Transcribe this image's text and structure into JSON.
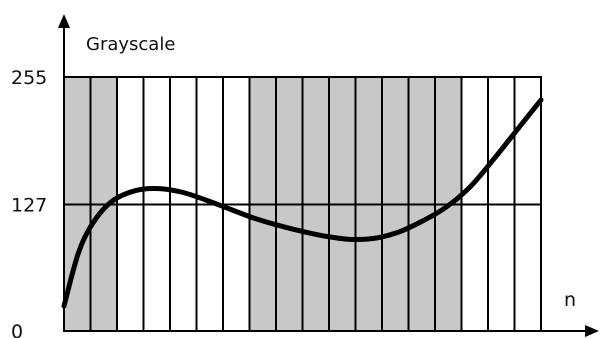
{
  "chart_data": {
    "type": "line",
    "title": "",
    "xlabel": "n",
    "ylabel": "Grayscale",
    "ylim": [
      0,
      255
    ],
    "yticks": [
      {
        "value": 0,
        "label": "0"
      },
      {
        "value": 127,
        "label": "127"
      },
      {
        "value": 255,
        "label": "255"
      }
    ],
    "grid": true,
    "stripes": [
      "gray",
      "gray",
      "white",
      "white",
      "white",
      "white",
      "white",
      "gray",
      "gray",
      "gray",
      "gray",
      "gray",
      "gray",
      "gray",
      "gray",
      "white",
      "white",
      "white"
    ],
    "colors": {
      "stripe_filled": "#c8c8c8",
      "stripe_empty": "#ffffff",
      "curve": "#000000",
      "axis": "#000000"
    },
    "series": [
      {
        "x": [
          0.0,
          0.03,
          0.06,
          0.1,
          0.15,
          0.2,
          0.25,
          0.3,
          0.35,
          0.4,
          0.45,
          0.5,
          0.55,
          0.6,
          0.65,
          0.7,
          0.75,
          0.8,
          0.85,
          0.9,
          0.95,
          1.0
        ],
        "values": [
          25,
          78,
          108,
          130,
          141,
          143,
          139,
          131,
          122,
          113,
          106,
          100,
          95,
          92,
          93,
          99,
          110,
          124,
          144,
          172,
          202,
          232
        ]
      }
    ]
  }
}
